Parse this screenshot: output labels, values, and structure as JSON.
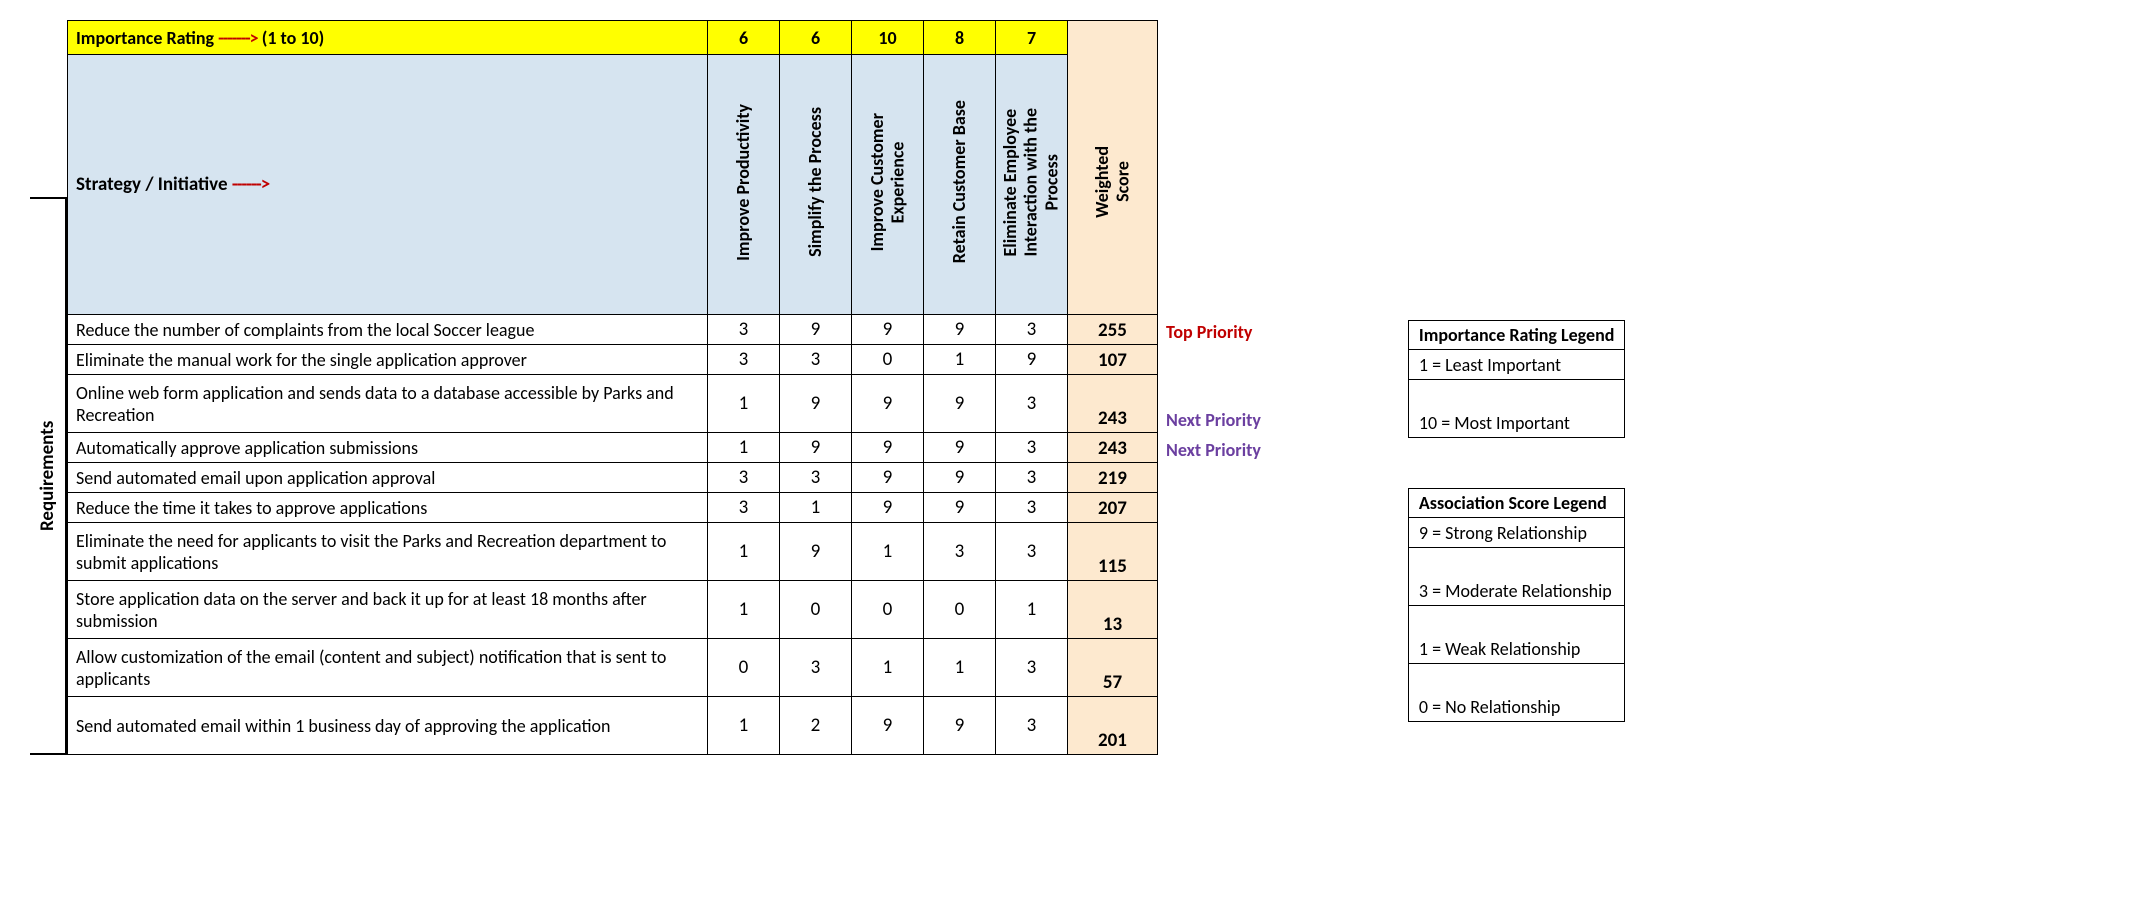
{
  "colors": {
    "yellow": "#ffff00",
    "header_blue": "#d6e4f0",
    "score_bg": "#fde9cf",
    "arrow_red": "#c00000",
    "top_priority": "#c00000",
    "next_priority": "#6b3fa0",
    "border": "#000000",
    "text": "#000000"
  },
  "importance": {
    "label_prefix": "Importance Rating ",
    "label_arrow": "------->",
    "label_suffix": " (1 to 10)",
    "values": [
      6,
      6,
      10,
      8,
      7
    ]
  },
  "strategy": {
    "label_prefix": "Strategy / Initiative ",
    "label_arrow": "------>",
    "columns": [
      "Improve Productivity",
      "Simplify the Process",
      "Improve Customer\nExperience",
      "Retain Customer Base",
      "Eliminate Employee\nInteraction with the\nProcess"
    ],
    "score_header": "Weighted\nScore"
  },
  "requirements_label": "Requirements",
  "rows": [
    {
      "text": "Reduce the number of complaints from the local Soccer league",
      "v": [
        3,
        9,
        9,
        9,
        3
      ],
      "score": 255,
      "flag": "Top Priority",
      "flag_color": "#c00000",
      "height": 1
    },
    {
      "text": "Eliminate the manual work for the single application approver",
      "v": [
        3,
        3,
        0,
        1,
        9
      ],
      "score": 107,
      "flag": "",
      "flag_color": "",
      "height": 1
    },
    {
      "text": "Online web form application and sends data to a database accessible by Parks and Recreation",
      "v": [
        1,
        9,
        9,
        9,
        3
      ],
      "score": 243,
      "flag": "Next Priority",
      "flag_color": "#6b3fa0",
      "height": 2
    },
    {
      "text": "Automatically approve application submissions",
      "v": [
        1,
        9,
        9,
        9,
        3
      ],
      "score": 243,
      "flag": "Next Priority",
      "flag_color": "#6b3fa0",
      "height": 1
    },
    {
      "text": "Send automated email upon application approval",
      "v": [
        3,
        3,
        9,
        9,
        3
      ],
      "score": 219,
      "flag": "",
      "flag_color": "",
      "height": 1
    },
    {
      "text": "Reduce the time it takes to approve applications",
      "v": [
        3,
        1,
        9,
        9,
        3
      ],
      "score": 207,
      "flag": "",
      "flag_color": "",
      "height": 1
    },
    {
      "text": "Eliminate the need for applicants to visit the Parks and Recreation department to submit applications",
      "v": [
        1,
        9,
        1,
        3,
        3
      ],
      "score": 115,
      "flag": "",
      "flag_color": "",
      "height": 2
    },
    {
      "text": "Store application data on the server and back it up for at least 18 months after submission",
      "v": [
        1,
        0,
        0,
        0,
        1
      ],
      "score": 13,
      "flag": "",
      "flag_color": "",
      "height": 2
    },
    {
      "text": "Allow customization of the email (content and subject) notification that is sent to applicants",
      "v": [
        0,
        3,
        1,
        1,
        3
      ],
      "score": 57,
      "flag": "",
      "flag_color": "",
      "height": 2
    },
    {
      "text": "Send automated email within 1 business day of approving the application",
      "v": [
        1,
        2,
        9,
        9,
        3
      ],
      "score": 201,
      "flag": "",
      "flag_color": "",
      "height": 2
    }
  ],
  "legends": {
    "importance": {
      "title": "Importance Rating Legend",
      "items": [
        {
          "text": "1 = Least Important",
          "tall": false
        },
        {
          "text": "10 = Most Important",
          "tall": true
        }
      ]
    },
    "association": {
      "title": "Association Score Legend",
      "items": [
        {
          "text": "9 = Strong Relationship",
          "tall": false
        },
        {
          "text": "3 = Moderate Relationship",
          "tall": true
        },
        {
          "text": "1 = Weak Relationship",
          "tall": true
        },
        {
          "text": "0 = No Relationship",
          "tall": true
        }
      ]
    }
  }
}
